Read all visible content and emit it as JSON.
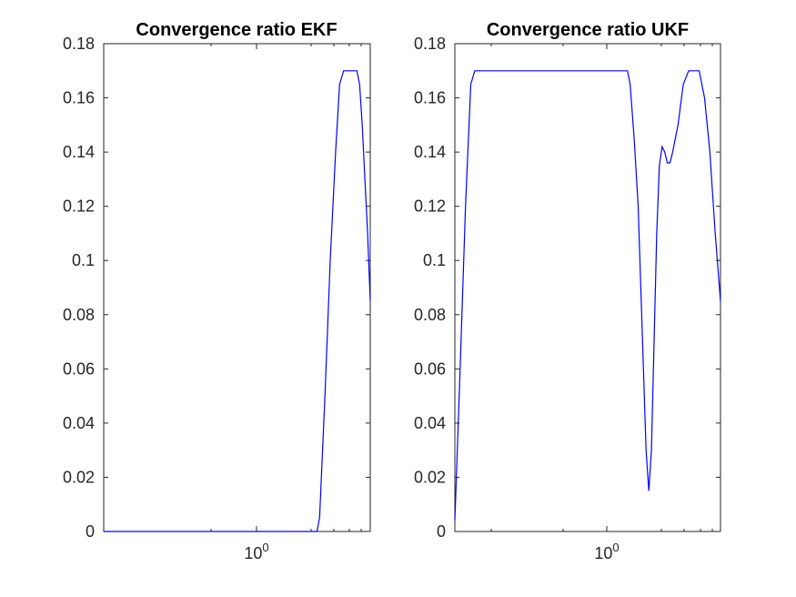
{
  "colors": {
    "line": "#0000ff",
    "axis": "#262626",
    "background": "#ffffff"
  },
  "chart_data": [
    {
      "type": "line",
      "title": "Convergence ratio EKF",
      "xlabel": "",
      "ylabel": "",
      "xscale": "log",
      "xlim_fraction": [
        0,
        1
      ],
      "ylim": [
        0,
        0.18
      ],
      "yticks": [
        "0",
        "0.02",
        "0.04",
        "0.06",
        "0.08",
        "0.1",
        "0.12",
        "0.14",
        "0.16",
        "0.18"
      ],
      "xtick_label": {
        "base": "10",
        "exp": "0"
      },
      "grid": false,
      "series": [
        {
          "color": "#0000ff",
          "x": [
            0.0,
            0.8,
            0.81,
            0.83,
            0.85,
            0.87,
            0.885,
            0.9,
            0.95,
            0.96,
            0.97,
            0.98,
            0.99,
            1.0
          ],
          "y": [
            0.0,
            0.0,
            0.005,
            0.05,
            0.1,
            0.14,
            0.165,
            0.17,
            0.17,
            0.165,
            0.15,
            0.13,
            0.11,
            0.085
          ]
        }
      ]
    },
    {
      "type": "line",
      "title": "Convergence ratio UKF",
      "xlabel": "",
      "ylabel": "",
      "xscale": "log",
      "xlim_fraction": [
        0,
        1
      ],
      "ylim": [
        0,
        0.18
      ],
      "yticks": [
        "0",
        "0.02",
        "0.04",
        "0.06",
        "0.08",
        "0.1",
        "0.12",
        "0.14",
        "0.16",
        "0.18"
      ],
      "xtick_label": {
        "base": "10",
        "exp": "0"
      },
      "grid": false,
      "series": [
        {
          "color": "#0000ff",
          "x": [
            0.0,
            0.02,
            0.04,
            0.06,
            0.075,
            0.09,
            0.65,
            0.66,
            0.675,
            0.69,
            0.7,
            0.71,
            0.72,
            0.73,
            0.74,
            0.75,
            0.76,
            0.77,
            0.78,
            0.79,
            0.8,
            0.81,
            0.82,
            0.84,
            0.86,
            0.88,
            0.9,
            0.92,
            0.94,
            0.96,
            0.98,
            1.0
          ],
          "y": [
            0.004,
            0.06,
            0.12,
            0.165,
            0.17,
            0.17,
            0.17,
            0.165,
            0.145,
            0.12,
            0.09,
            0.06,
            0.03,
            0.015,
            0.03,
            0.07,
            0.11,
            0.135,
            0.142,
            0.14,
            0.136,
            0.136,
            0.14,
            0.15,
            0.165,
            0.17,
            0.17,
            0.17,
            0.16,
            0.14,
            0.11,
            0.085
          ]
        }
      ]
    }
  ]
}
